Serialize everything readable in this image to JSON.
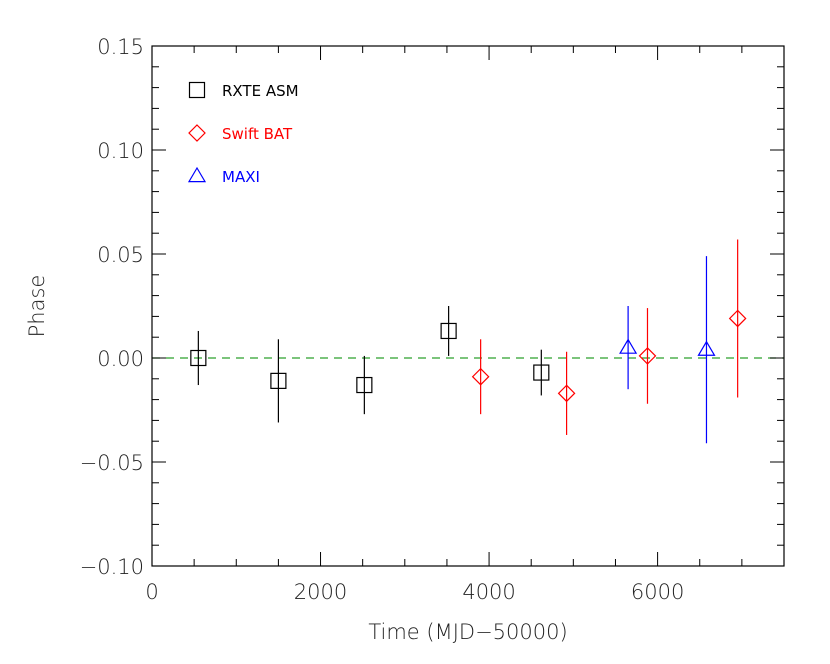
{
  "chart_data": {
    "type": "scatter",
    "title": "",
    "xlabel": "Time (MJD−50000)",
    "ylabel": "Phase",
    "xlim": [
      0,
      7500
    ],
    "ylim": [
      -0.1,
      0.15
    ],
    "xticks": [
      0,
      2000,
      4000,
      6000
    ],
    "xtick_labels": [
      "0",
      "2000",
      "4000",
      "6000"
    ],
    "yticks": [
      -0.1,
      -0.05,
      0.0,
      0.05,
      0.1,
      0.15
    ],
    "ytick_labels": [
      "−0.10",
      "−0.05",
      "0.00",
      "0.05",
      "0.10",
      "0.15"
    ],
    "grid": false,
    "legend_position": "top-left",
    "reference_line": {
      "y": 0.0,
      "style": "dashed",
      "color": "#2ca02c"
    },
    "series": [
      {
        "name": "RXTE ASM",
        "marker": "square",
        "color": "#000000",
        "points": [
          {
            "x": 550,
            "y": 0.0,
            "yerr": 0.013
          },
          {
            "x": 1500,
            "y": -0.011,
            "yerr": 0.02
          },
          {
            "x": 2520,
            "y": -0.013,
            "yerr": 0.014
          },
          {
            "x": 3520,
            "y": 0.013,
            "yerr": 0.012
          },
          {
            "x": 4620,
            "y": -0.007,
            "yerr": 0.011
          }
        ]
      },
      {
        "name": "Swift BAT",
        "marker": "diamond",
        "color": "#ff0000",
        "points": [
          {
            "x": 3900,
            "y": -0.009,
            "yerr": 0.018
          },
          {
            "x": 4920,
            "y": -0.017,
            "yerr": 0.02
          },
          {
            "x": 5880,
            "y": 0.001,
            "yerr": 0.023
          },
          {
            "x": 6950,
            "y": 0.019,
            "yerr": 0.038
          }
        ]
      },
      {
        "name": "MAXI",
        "marker": "triangle",
        "color": "#0000ff",
        "points": [
          {
            "x": 5650,
            "y": 0.005,
            "yerr": 0.02
          },
          {
            "x": 6580,
            "y": 0.004,
            "yerr": 0.045
          }
        ]
      }
    ]
  }
}
